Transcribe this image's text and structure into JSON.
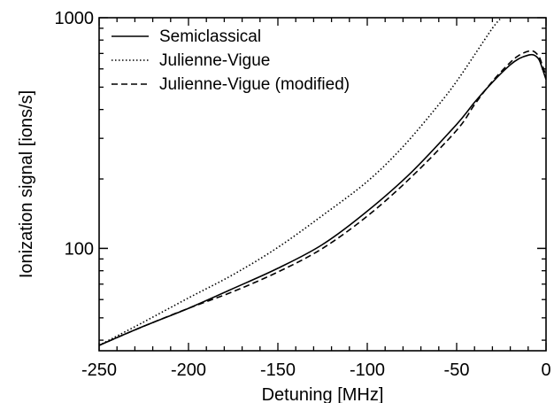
{
  "chart_data": {
    "type": "line",
    "title": "",
    "xlabel": "Detuning [MHz]",
    "ylabel": "Ionization signal [ions/s]",
    "xlim": [
      -250,
      0
    ],
    "ylim": [
      36,
      1000
    ],
    "yscale": "log",
    "grid": false,
    "legend_position": "top-left",
    "x_ticks": [
      -250,
      -200,
      -150,
      -100,
      -50,
      0
    ],
    "x_tick_labels": [
      "-250",
      "-200",
      "-150",
      "-100",
      "-50",
      "0"
    ],
    "y_ticks": [
      100,
      1000
    ],
    "y_tick_labels": [
      "100",
      "1000"
    ],
    "series": [
      {
        "name": "Semiclassical",
        "style": "solid",
        "x": [
          -250,
          -225,
          -200,
          -175,
          -150,
          -125,
          -100,
          -75,
          -50,
          -40,
          -30,
          -20,
          -15,
          -10,
          -7,
          -4,
          -2,
          0
        ],
        "y": [
          38,
          46,
          55,
          67,
          82,
          104,
          145,
          215,
          345,
          430,
          525,
          625,
          665,
          688,
          690,
          660,
          600,
          540
        ]
      },
      {
        "name": "Julienne-Vigue",
        "style": "dotted",
        "x": [
          -250,
          -225,
          -200,
          -175,
          -150,
          -125,
          -100,
          -80,
          -60,
          -50,
          -40,
          -30,
          -25
        ],
        "y": [
          38,
          48,
          61,
          77,
          101,
          139,
          195,
          276,
          420,
          530,
          690,
          900,
          1000
        ]
      },
      {
        "name": "Julienne-Vigue (modified)",
        "style": "dashed",
        "x": [
          -250,
          -225,
          -200,
          -175,
          -150,
          -125,
          -100,
          -75,
          -50,
          -40,
          -30,
          -20,
          -15,
          -10,
          -7,
          -4,
          -2,
          0
        ],
        "y": [
          38,
          46,
          55,
          65,
          79,
          100,
          138,
          205,
          325,
          420,
          530,
          640,
          688,
          715,
          715,
          680,
          620,
          560
        ]
      }
    ]
  }
}
